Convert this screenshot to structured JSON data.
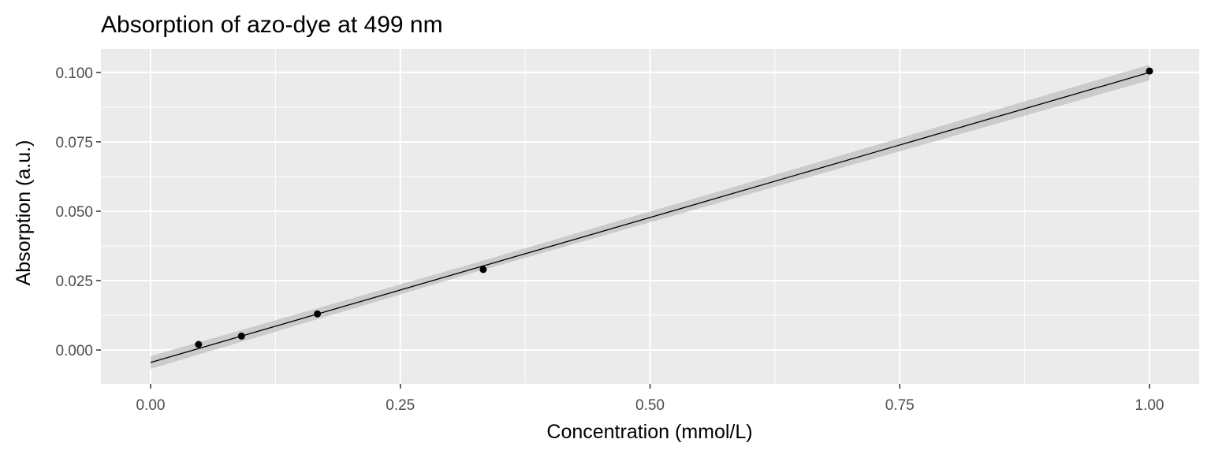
{
  "chart_data": {
    "type": "scatter",
    "title": "Absorption of azo-dye at 499 nm",
    "xlabel": "Concentration (mmol/L)",
    "ylabel": "Absorption (a.u.)",
    "xlim": [
      -0.05,
      1.05
    ],
    "ylim": [
      -0.0122,
      0.1085
    ],
    "x_ticks": [
      0.0,
      0.25,
      0.5,
      0.75,
      1.0
    ],
    "x_tick_labels": [
      "0.00",
      "0.25",
      "0.50",
      "0.75",
      "1.00"
    ],
    "y_ticks": [
      0.0,
      0.025,
      0.05,
      0.075,
      0.1
    ],
    "y_tick_labels": [
      "0.000",
      "0.025",
      "0.050",
      "0.075",
      "0.100"
    ],
    "grid": true,
    "background": "#ebebeb",
    "grid_color": "#ffffff",
    "point_color": "#000000",
    "line_color": "#000000",
    "ribbon_color": "#bebebe",
    "points": {
      "x": [
        0.048,
        0.091,
        0.167,
        0.333,
        1.0
      ],
      "y": [
        0.002,
        0.005,
        0.013,
        0.029,
        0.1005
      ]
    },
    "fit_line": {
      "x": [
        0.0,
        1.0
      ],
      "y": [
        -0.0045,
        0.1
      ]
    },
    "confidence_band": {
      "x": [
        0.0,
        0.333,
        1.0
      ],
      "lower": [
        -0.0068,
        0.0289,
        0.0972
      ],
      "upper": [
        -0.0022,
        0.0322,
        0.1028
      ]
    }
  }
}
